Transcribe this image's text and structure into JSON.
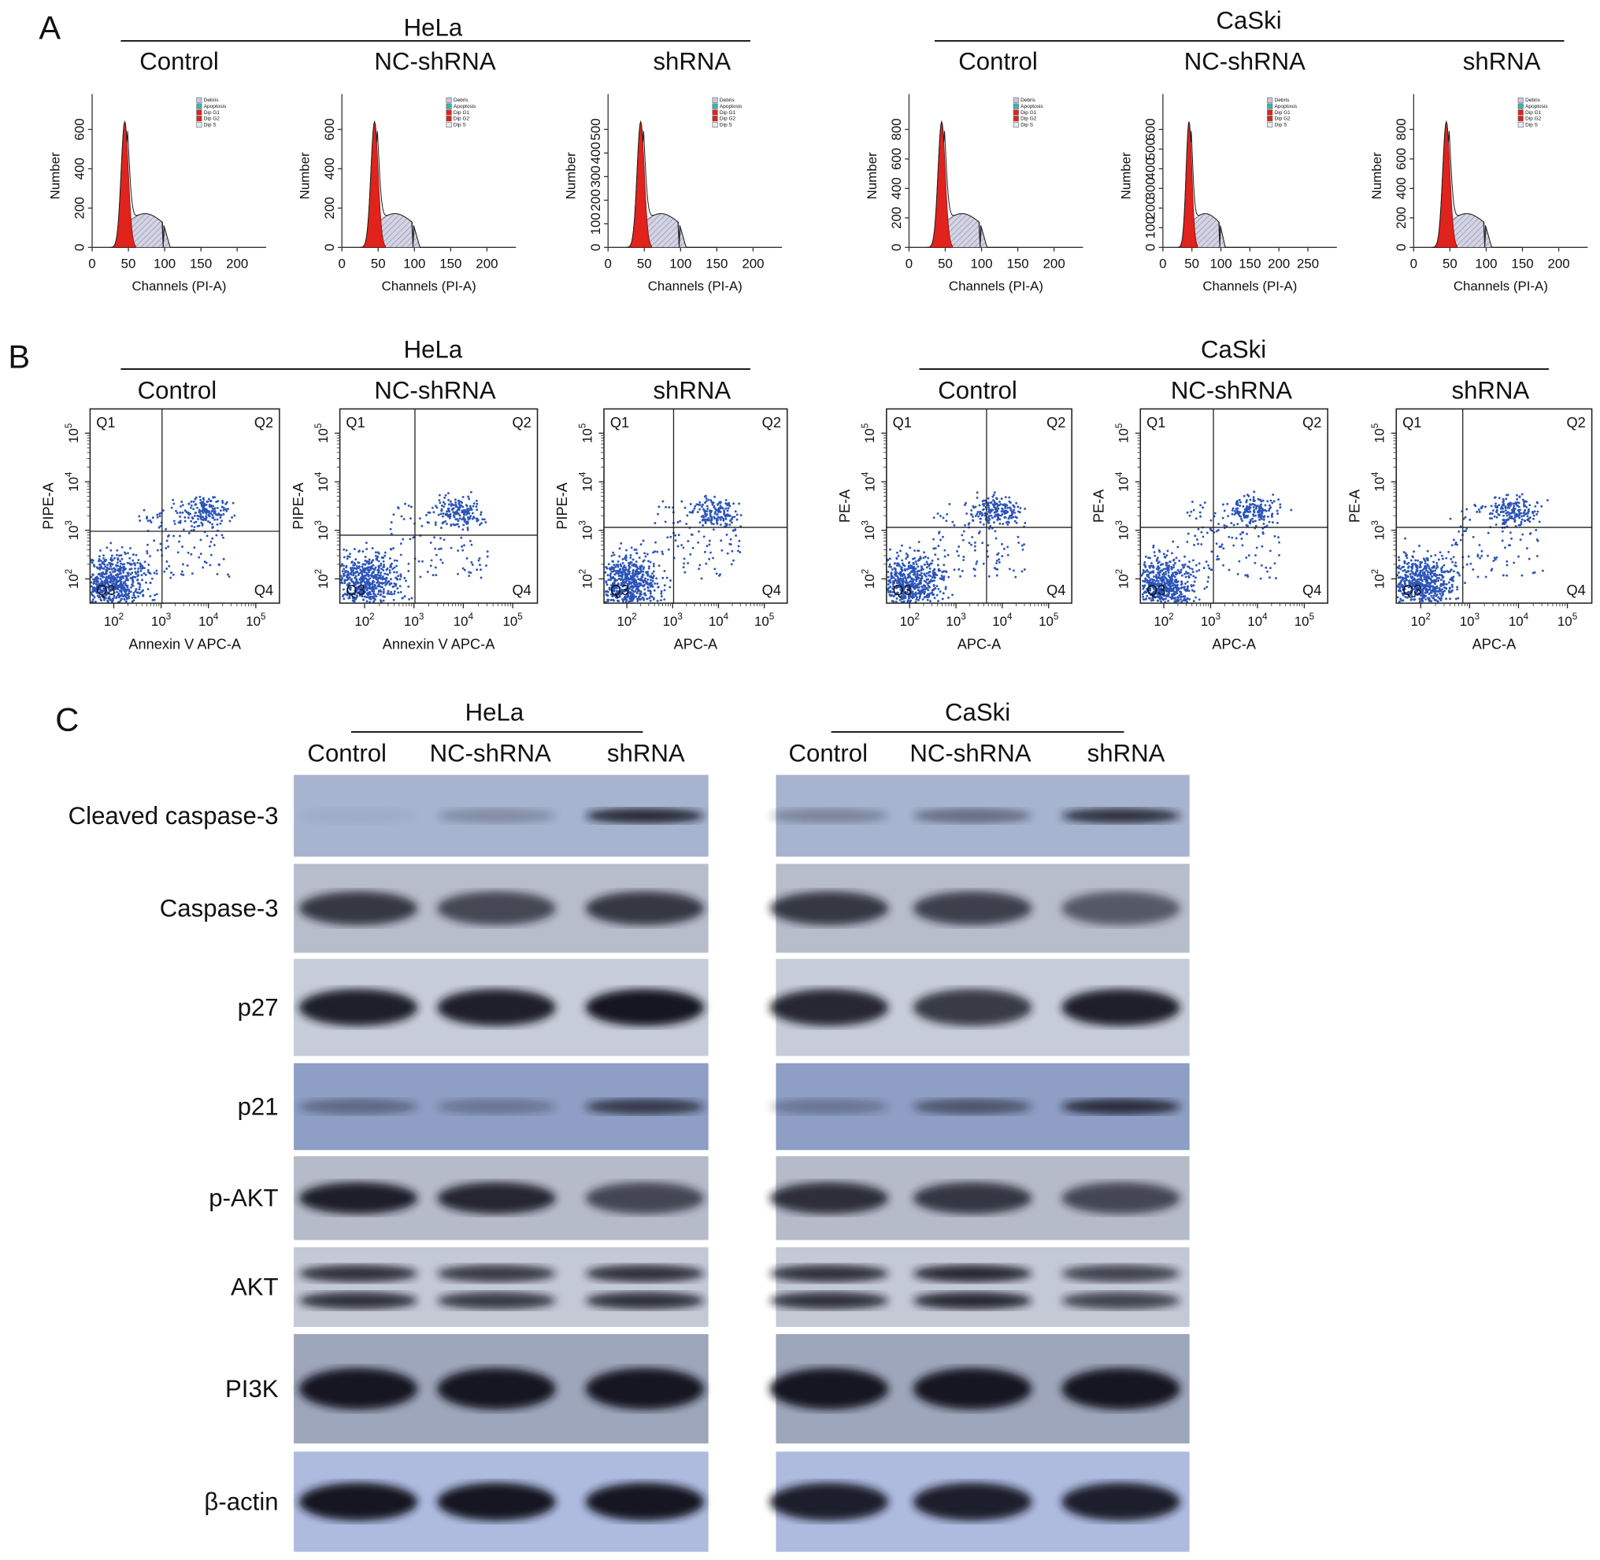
{
  "panel_a": {
    "label": "A",
    "x_label": "Channels (PI-A)",
    "y_label": "Number",
    "legend": [
      "Debris",
      "Apoptosis",
      "Dip G1",
      "Dip G2",
      "Dip S"
    ],
    "groups": [
      {
        "title": "HeLa",
        "plots": [
          {
            "title": "Control",
            "yticks": [
              0,
              200,
              400,
              600
            ],
            "xticks": [
              0,
              50,
              100,
              150,
              200
            ]
          },
          {
            "title": "NC-shRNA",
            "yticks": [
              0,
              200,
              400,
              600
            ],
            "xticks": [
              0,
              50,
              100,
              150,
              200
            ]
          },
          {
            "title": "shRNA",
            "yticks": [
              0,
              100,
              200,
              300,
              400,
              500
            ],
            "xticks": [
              0,
              50,
              100,
              150,
              200
            ]
          }
        ]
      },
      {
        "title": "CaSki",
        "plots": [
          {
            "title": "Control",
            "yticks": [
              0,
              200,
              400,
              600,
              800
            ],
            "xticks": [
              0,
              50,
              100,
              150,
              200
            ]
          },
          {
            "title": "NC-shRNA",
            "yticks": [
              0,
              100,
              200,
              300,
              400,
              500,
              600
            ],
            "xticks": [
              0,
              50,
              100,
              150,
              200,
              250
            ]
          },
          {
            "title": "shRNA",
            "yticks": [
              0,
              200,
              400,
              600,
              800
            ],
            "xticks": [
              0,
              50,
              100,
              150,
              200
            ]
          }
        ]
      }
    ]
  },
  "panel_b": {
    "label": "B",
    "tick_base": "10",
    "tick_exponents": [
      2,
      3,
      4,
      5
    ],
    "quadrants": [
      "Q1",
      "Q2",
      "Q3",
      "Q4"
    ],
    "groups": [
      {
        "title": "HeLa",
        "plots": [
          {
            "title": "Control",
            "x_label": "Annexin V APC-A",
            "y_label": "PIPE-A"
          },
          {
            "title": "NC-shRNA",
            "x_label": "Annexin V APC-A",
            "y_label": "PIPE-A"
          },
          {
            "title": "shRNA",
            "x_label": "APC-A",
            "y_label": "PIPE-A"
          }
        ]
      },
      {
        "title": "CaSki",
        "plots": [
          {
            "title": "Control",
            "x_label": "APC-A",
            "y_label": "PE-A"
          },
          {
            "title": "NC-shRNA",
            "x_label": "APC-A",
            "y_label": "PE-A"
          },
          {
            "title": "shRNA",
            "x_label": "APC-A",
            "y_label": "PE-A"
          }
        ]
      }
    ]
  },
  "panel_c": {
    "label": "C",
    "groups": [
      {
        "title": "HeLa",
        "columns": [
          "Control",
          "NC-shRNA",
          "shRNA"
        ]
      },
      {
        "title": "CaSki",
        "columns": [
          "Control",
          "NC-shRNA",
          "shRNA"
        ]
      }
    ],
    "rows": [
      "Cleaved caspase-3",
      "Caspase-3",
      "p27",
      "p21",
      "p-AKT",
      "AKT",
      "PI3K",
      "β-actin"
    ]
  }
}
